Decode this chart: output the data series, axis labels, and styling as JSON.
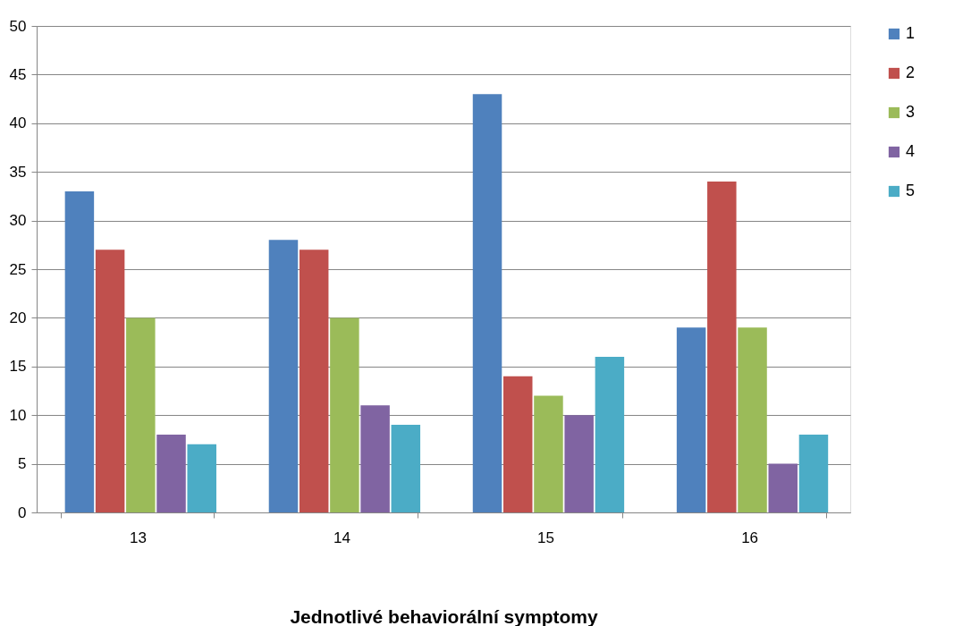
{
  "chart_data": {
    "type": "bar",
    "xlabel": "Jednotlivé behaviorální symptomy",
    "categories": [
      "13",
      "14",
      "15",
      "16"
    ],
    "series": [
      {
        "name": "1",
        "color": "#4f81bd",
        "values": [
          33,
          28,
          43,
          19
        ]
      },
      {
        "name": "2",
        "color": "#c0504d",
        "values": [
          27,
          27,
          14,
          34
        ]
      },
      {
        "name": "3",
        "color": "#9bbb59",
        "values": [
          20,
          20,
          12,
          19
        ]
      },
      {
        "name": "4",
        "color": "#8064a2",
        "values": [
          8,
          11,
          10,
          5
        ]
      },
      {
        "name": "5",
        "color": "#4bacc6",
        "values": [
          7,
          9,
          16,
          8
        ]
      }
    ],
    "ylim": [
      0,
      50
    ],
    "yticks": [
      0,
      5,
      10,
      15,
      20,
      25,
      30,
      35,
      40,
      45,
      50
    ],
    "grid": "y",
    "legend": "right"
  }
}
